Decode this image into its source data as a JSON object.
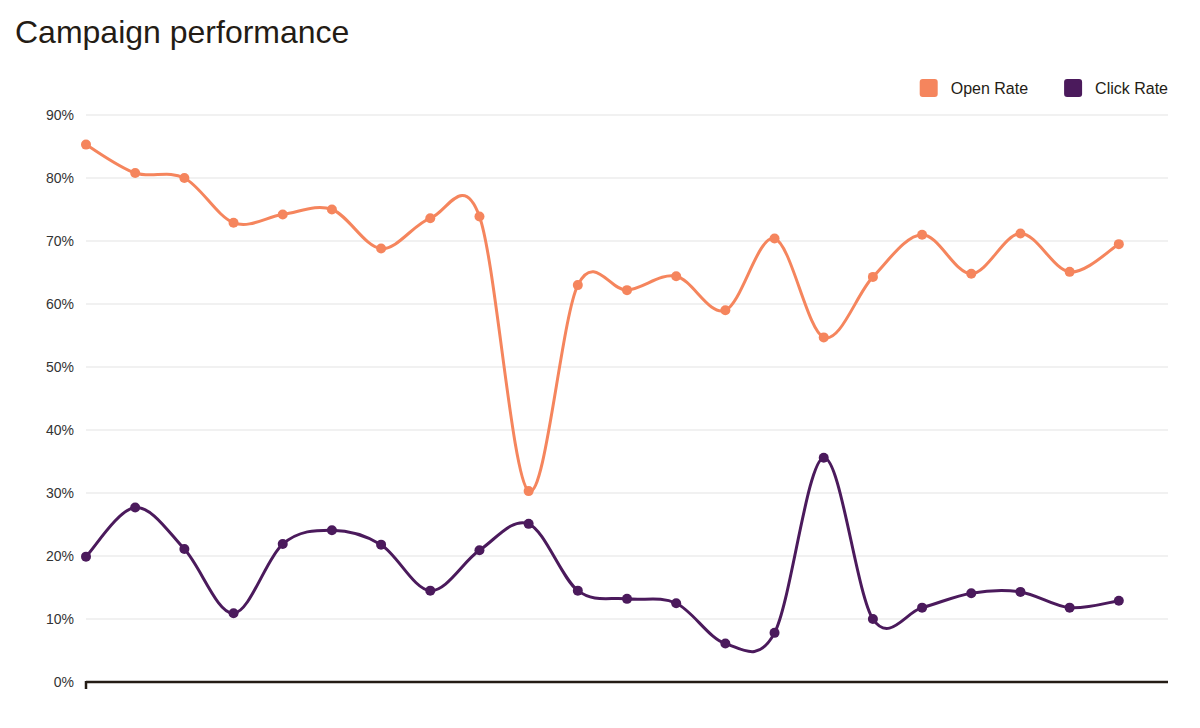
{
  "chart_data": {
    "type": "line",
    "title": "Campaign performance",
    "categories": [
      null,
      null,
      null,
      null,
      null,
      null,
      null,
      null,
      null,
      null,
      null,
      null,
      null,
      null,
      null,
      null,
      null,
      null,
      null,
      null,
      null,
      null
    ],
    "series": [
      {
        "name": "Open Rate",
        "color": "#f5855d",
        "marker": "circle",
        "line_style": "smooth",
        "values": [
          85.3,
          80.8,
          80.0,
          72.9,
          74.2,
          75.0,
          68.8,
          73.6,
          73.9,
          30.3,
          63.0,
          62.2,
          64.4,
          59.0,
          70.4,
          54.7,
          64.3,
          71.0,
          64.8,
          71.2,
          65.1,
          69.5
        ]
      },
      {
        "name": "Click Rate",
        "color": "#4b1a5c",
        "marker": "circle",
        "line_style": "smooth",
        "values": [
          19.9,
          27.7,
          21.1,
          10.9,
          21.9,
          24.1,
          21.8,
          14.5,
          20.9,
          25.1,
          14.5,
          13.2,
          12.5,
          6.1,
          7.8,
          35.6,
          10.0,
          11.8,
          14.1,
          14.3,
          11.8,
          12.9
        ]
      }
    ],
    "ylim": [
      0,
      90
    ],
    "yticks": [
      {
        "value": 0,
        "label": "0%"
      },
      {
        "value": 10,
        "label": "10%"
      },
      {
        "value": 20,
        "label": "20%"
      },
      {
        "value": 30,
        "label": "30%"
      },
      {
        "value": 40,
        "label": "40%"
      },
      {
        "value": 50,
        "label": "50%"
      },
      {
        "value": 60,
        "label": "60%"
      },
      {
        "value": 70,
        "label": "70%"
      },
      {
        "value": 80,
        "label": "80%"
      },
      {
        "value": 90,
        "label": "90%"
      }
    ],
    "grid": true,
    "legend": "top-right"
  }
}
